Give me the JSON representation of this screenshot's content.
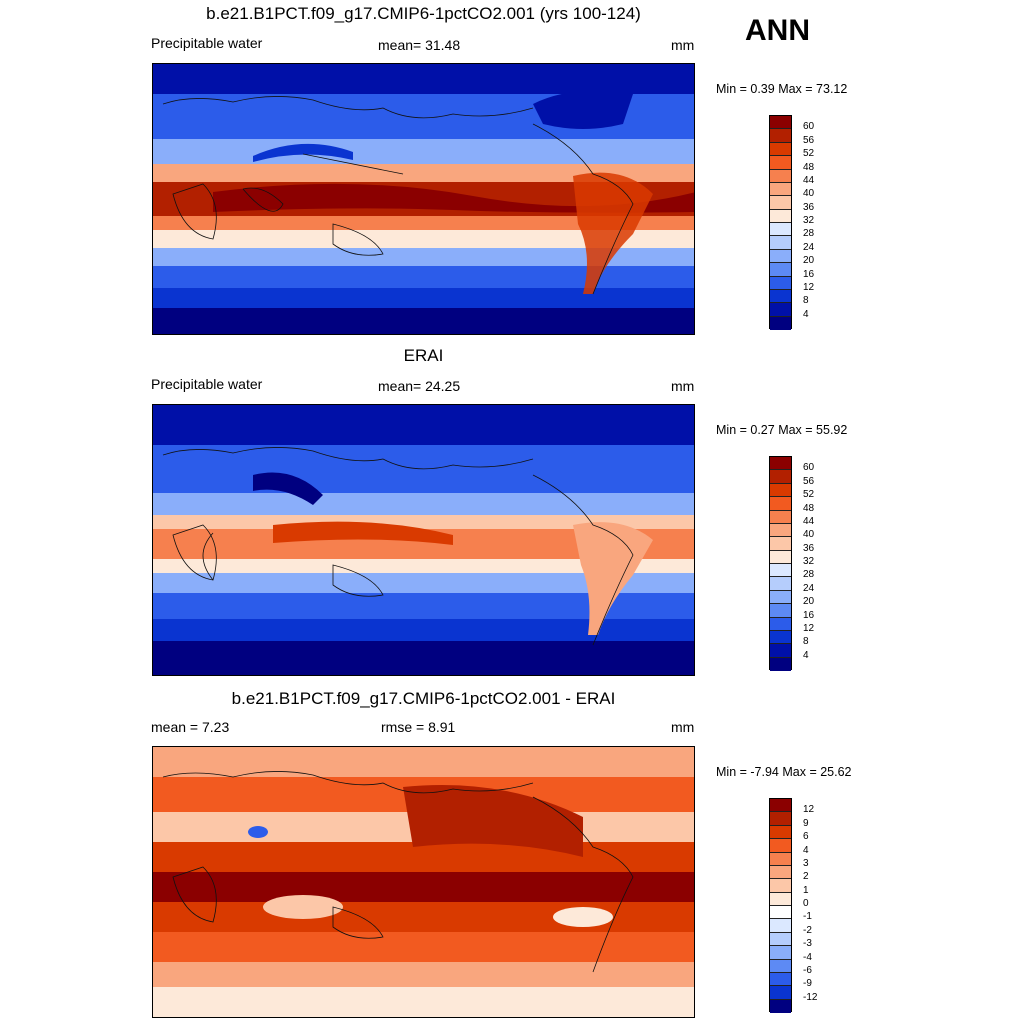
{
  "season": "ANN",
  "panels": [
    {
      "title": "b.e21.B1PCT.f09_g17.CMIP6-1pctCO2.001 (yrs 100-124)",
      "left_label": "Precipitable water",
      "mean_label": "mean=  31.48",
      "units": "mm",
      "minmax": "Min =   0.39 Max =  73.12",
      "levels": [
        "60",
        "56",
        "52",
        "48",
        "44",
        "40",
        "36",
        "32",
        "28",
        "24",
        "20",
        "16",
        "12",
        "8",
        "4"
      ],
      "colors": [
        "#8b0000",
        "#b22000",
        "#d93a00",
        "#f25a20",
        "#f6804e",
        "#f9a67e",
        "#fcc7a8",
        "#fde9d9",
        "#dbe8ff",
        "#b5cdfc",
        "#8aaefa",
        "#5d8af4",
        "#2c5cea",
        "#0a34d0",
        "#0010a8",
        "#000080"
      ]
    },
    {
      "title": "ERAI",
      "left_label": "Precipitable water",
      "mean_label": "mean=  24.25",
      "units": "mm",
      "minmax": "Min =   0.27 Max =  55.92",
      "levels": [
        "60",
        "56",
        "52",
        "48",
        "44",
        "40",
        "36",
        "32",
        "28",
        "24",
        "20",
        "16",
        "12",
        "8",
        "4"
      ],
      "colors": [
        "#8b0000",
        "#b22000",
        "#d93a00",
        "#f25a20",
        "#f6804e",
        "#f9a67e",
        "#fcc7a8",
        "#fde9d9",
        "#dbe8ff",
        "#b5cdfc",
        "#8aaefa",
        "#5d8af4",
        "#2c5cea",
        "#0a34d0",
        "#0010a8",
        "#000080"
      ]
    },
    {
      "title": "b.e21.B1PCT.f09_g17.CMIP6-1pctCO2.001 - ERAI",
      "left_label": "mean =   7.23",
      "mean_label": "rmse =   8.91",
      "units": "mm",
      "minmax": "Min =  -7.94 Max =  25.62",
      "levels": [
        "12",
        "9",
        "6",
        "4",
        "3",
        "2",
        "1",
        "0",
        "-1",
        "-2",
        "-3",
        "-4",
        "-6",
        "-9",
        "-12"
      ],
      "colors": [
        "#8b0000",
        "#b22000",
        "#d93a00",
        "#f25a20",
        "#f6804e",
        "#f9a67e",
        "#fcc7a8",
        "#fde9d9",
        "#ffffff",
        "#dbe8ff",
        "#b5cdfc",
        "#8aaefa",
        "#5d8af4",
        "#2c5cea",
        "#0a34d0",
        "#000080"
      ]
    }
  ]
}
